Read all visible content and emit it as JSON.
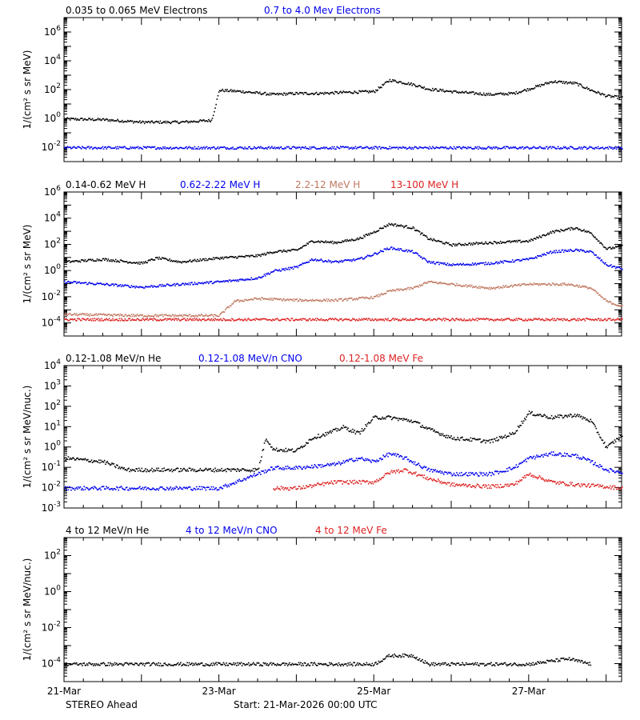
{
  "footer": {
    "spacecraft": "STEREO Ahead",
    "start": "Start: 21-Mar-2026 00:00 UTC"
  },
  "x_axis": {
    "ticks": [
      {
        "day": 0,
        "label": "21-Mar"
      },
      {
        "day": 2,
        "label": "23-Mar"
      },
      {
        "day": 4,
        "label": "25-Mar"
      },
      {
        "day": 6,
        "label": "27-Mar"
      }
    ],
    "xlim_days": [
      0,
      7.2
    ]
  },
  "chart_data": [
    {
      "type": "scatter",
      "yscale": "log",
      "ylabel": "1/(cm² s sr MeV)",
      "ylim_exp": [
        -3,
        7
      ],
      "yticks_exp": [
        -2,
        0,
        2,
        4,
        6
      ],
      "series": [
        {
          "name": "0.035 to 0.065 MeV Electrons",
          "color": "#000000",
          "x": [
            0,
            0.5,
            1,
            1.5,
            1.9,
            2.0,
            2.3,
            2.7,
            3.0,
            3.3,
            3.6,
            4.0,
            4.2,
            4.5,
            4.7,
            5.0,
            5.5,
            5.8,
            6.0,
            6.3,
            6.6,
            6.8,
            7.0,
            7.2
          ],
          "y": [
            1.0,
            0.9,
            0.6,
            0.6,
            0.8,
            100,
            80,
            50,
            60,
            60,
            70,
            80,
            500,
            250,
            120,
            80,
            50,
            60,
            120,
            400,
            300,
            100,
            40,
            30
          ]
        },
        {
          "name": "0.7 to 4.0 Mev Electrons",
          "color": "#0000ee",
          "x": [
            0,
            1,
            2,
            3,
            4,
            5,
            6,
            7,
            7.2
          ],
          "y": [
            0.01,
            0.01,
            0.01,
            0.01,
            0.01,
            0.01,
            0.01,
            0.01,
            0.01
          ]
        }
      ]
    },
    {
      "type": "scatter",
      "yscale": "log",
      "ylabel": "1/(cm² s sr MeV)",
      "ylim_exp": [
        -5,
        6
      ],
      "yticks_exp": [
        -4,
        -2,
        0,
        2,
        4,
        6
      ],
      "series": [
        {
          "name": "0.14-0.62 MeV H",
          "color": "#000000",
          "x": [
            0,
            0.5,
            1,
            1.2,
            1.5,
            2.0,
            2.5,
            2.7,
            3.0,
            3.2,
            3.5,
            3.8,
            4.0,
            4.2,
            4.5,
            4.7,
            5.0,
            5.5,
            6.0,
            6.3,
            6.6,
            6.8,
            7.0,
            7.2
          ],
          "y": [
            5,
            8,
            4,
            10,
            5,
            10,
            15,
            30,
            40,
            200,
            150,
            300,
            1000,
            4000,
            2000,
            300,
            100,
            150,
            200,
            1000,
            2000,
            800,
            50,
            80
          ]
        },
        {
          "name": "0.62-2.22 MeV H",
          "color": "#0000ee",
          "x": [
            0,
            0.5,
            1,
            1.5,
            2.0,
            2.5,
            2.7,
            3.0,
            3.2,
            3.5,
            3.8,
            4.0,
            4.2,
            4.5,
            4.7,
            5.0,
            5.5,
            6.0,
            6.3,
            6.6,
            6.8,
            7.0,
            7.2
          ],
          "y": [
            0.15,
            0.1,
            0.06,
            0.1,
            0.15,
            0.3,
            1,
            2,
            8,
            5,
            8,
            20,
            60,
            30,
            5,
            3,
            4,
            8,
            30,
            40,
            30,
            3,
            1.5
          ]
        },
        {
          "name": "2.2-12 MeV H",
          "color": "#c07860",
          "x": [
            0,
            1,
            2,
            2.2,
            2.5,
            3.0,
            3.5,
            4.0,
            4.2,
            4.5,
            4.7,
            5.0,
            5.5,
            6.0,
            6.5,
            6.8,
            7.0,
            7.2
          ],
          "y": [
            0.0005,
            0.0004,
            0.0004,
            0.005,
            0.008,
            0.006,
            0.006,
            0.01,
            0.03,
            0.05,
            0.15,
            0.1,
            0.05,
            0.1,
            0.1,
            0.05,
            0.005,
            0.002
          ]
        },
        {
          "name": "13-100 MeV H",
          "color": "#dd2222",
          "x": [
            0,
            1,
            2,
            3,
            4,
            5,
            6,
            7,
            7.2
          ],
          "y": [
            0.0002,
            0.0002,
            0.0002,
            0.0002,
            0.0002,
            0.0002,
            0.0002,
            0.0002,
            0.0002
          ]
        }
      ]
    },
    {
      "type": "scatter",
      "yscale": "log",
      "ylabel": "1/(cm² s sr MeV/nuc.)",
      "ylim_exp": [
        -3,
        4
      ],
      "yticks_exp": [
        -3,
        -2,
        -1,
        0,
        1,
        2,
        3,
        4
      ],
      "series": [
        {
          "name": "0.12-1.08 MeV/n He",
          "color": "#000000",
          "x": [
            0,
            0.5,
            0.8,
            1.0,
            1.5,
            2.0,
            2.5,
            2.6,
            2.7,
            3.0,
            3.2,
            3.4,
            3.6,
            3.8,
            4.0,
            4.2,
            4.5,
            4.7,
            5.0,
            5.5,
            5.8,
            6.0,
            6.3,
            6.6,
            6.8,
            7.0,
            7.2
          ],
          "y": [
            0.3,
            0.2,
            0.08,
            0.08,
            0.08,
            0.08,
            0.08,
            3,
            0.8,
            0.7,
            3,
            5,
            10,
            5,
            30,
            30,
            20,
            8,
            3,
            2,
            5,
            50,
            30,
            40,
            20,
            1,
            4
          ]
        },
        {
          "name": "0.12-1.08 MeV/n CNO",
          "color": "#0000ee",
          "x": [
            0,
            1,
            2,
            2.7,
            3.0,
            3.5,
            3.8,
            4.0,
            4.2,
            4.4,
            4.7,
            5.0,
            5.5,
            5.8,
            6.0,
            6.3,
            6.6,
            6.8,
            7.0,
            7.2
          ],
          "y": [
            0.01,
            0.01,
            0.01,
            0.1,
            0.1,
            0.15,
            0.3,
            0.2,
            0.5,
            0.3,
            0.08,
            0.05,
            0.05,
            0.1,
            0.3,
            0.5,
            0.4,
            0.2,
            0.08,
            0.06
          ]
        },
        {
          "name": "0.12-1.08 MeV Fe",
          "color": "#dd2222",
          "x": [
            2.7,
            3.0,
            3.5,
            4.0,
            4.2,
            4.4,
            4.7,
            5.0,
            5.5,
            5.8,
            6.0,
            6.3,
            6.6,
            7.0,
            7.2
          ],
          "y": [
            0.01,
            0.01,
            0.02,
            0.02,
            0.06,
            0.08,
            0.03,
            0.015,
            0.012,
            0.015,
            0.05,
            0.02,
            0.015,
            0.012,
            0.01
          ]
        }
      ]
    },
    {
      "type": "scatter",
      "yscale": "log",
      "ylabel": "1/(cm² s sr MeV/nuc.)",
      "ylim_exp": [
        -5,
        3
      ],
      "yticks_exp": [
        -4,
        -2,
        0,
        2
      ],
      "series": [
        {
          "name": "4 to 12 MeV/n He",
          "color": "#000000",
          "x": [
            0,
            1,
            2,
            2.5,
            3.0,
            3.5,
            4.0,
            4.2,
            4.5,
            4.7,
            5.0,
            5.5,
            6.0,
            6.5,
            6.8
          ],
          "y": [
            0.0001,
            0.0001,
            0.0001,
            0.0001,
            0.0001,
            0.0001,
            0.0001,
            0.0003,
            0.0003,
            0.0001,
            0.0001,
            0.0001,
            0.0001,
            0.0002,
            0.0001
          ]
        },
        {
          "name": "4 to 12 MeV/n CNO",
          "color": "#0000ee",
          "x": [],
          "y": []
        },
        {
          "name": "4 to 12 MeV Fe",
          "color": "#dd2222",
          "x": [],
          "y": []
        }
      ]
    }
  ]
}
